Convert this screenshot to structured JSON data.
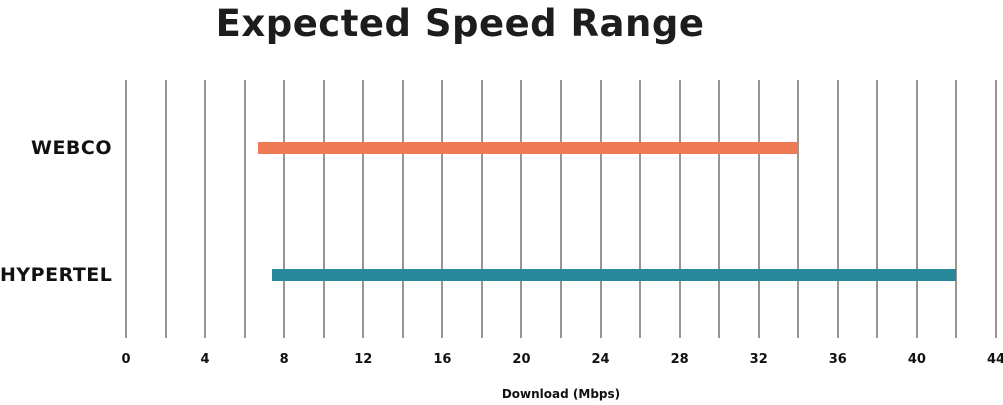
{
  "chart_data": {
    "type": "bar",
    "subtype": "horizontal-range-bars",
    "title": "Expected Speed Range",
    "xlabel": "Download (Mbps)",
    "xlim": [
      0,
      44
    ],
    "x_tick_labels": [
      "0",
      "4",
      "8",
      "12",
      "16",
      "20",
      "24",
      "28",
      "32",
      "36",
      "40",
      "44"
    ],
    "x_tick_values": [
      0,
      4,
      8,
      12,
      16,
      20,
      24,
      28,
      32,
      36,
      40,
      44
    ],
    "gridline_interval": 2,
    "grid": true,
    "legend": false,
    "categories": [
      "WEBCO",
      "HYPERTEL"
    ],
    "series": [
      {
        "name": "WEBCO",
        "range_mbps": [
          6.7,
          34.0
        ],
        "color": "#ef7b56"
      },
      {
        "name": "HYPERTEL",
        "range_mbps": [
          7.4,
          42.0
        ],
        "color": "#28879b"
      }
    ],
    "colors": {
      "gridline": "#9b948c",
      "text": "#111111",
      "background": "#ffffff"
    }
  }
}
